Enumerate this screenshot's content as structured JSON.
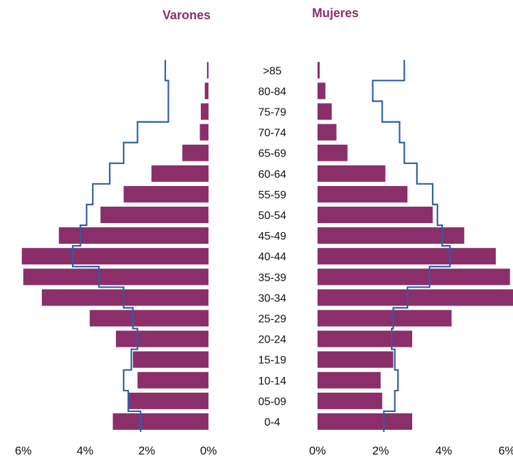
{
  "chart_data": {
    "type": "bar",
    "subtype": "population-pyramid",
    "left_title": "Varones",
    "right_title": "Mujeres",
    "categories": [
      "0-4",
      "05-09",
      "10-14",
      "15-19",
      "20-24",
      "25-29",
      "30-34",
      "35-39",
      "40-44",
      "45-49",
      "50-54",
      "55-59",
      "60-64",
      "65-69",
      "70-74",
      "75-79",
      "80-84",
      ">85"
    ],
    "series": [
      {
        "side": "left",
        "kind": "bars",
        "values": [
          3.1,
          2.6,
          2.3,
          2.45,
          3.0,
          3.85,
          5.4,
          6.0,
          6.05,
          4.85,
          3.5,
          2.75,
          1.85,
          0.85,
          0.28,
          0.25,
          0.12,
          0.05
        ]
      },
      {
        "side": "right",
        "kind": "bars",
        "values": [
          3.0,
          2.05,
          2.0,
          2.4,
          3.0,
          4.25,
          6.3,
          6.1,
          5.65,
          4.65,
          3.65,
          2.85,
          2.15,
          0.95,
          0.6,
          0.45,
          0.25,
          0.07
        ]
      },
      {
        "side": "left",
        "kind": "step-line",
        "color": "#2b5fa3",
        "values": [
          2.2,
          2.6,
          2.75,
          2.5,
          2.3,
          2.45,
          2.75,
          3.55,
          4.4,
          4.15,
          3.95,
          3.75,
          3.2,
          2.75,
          2.3,
          1.3,
          1.3,
          1.4
        ]
      },
      {
        "side": "right",
        "kind": "step-line",
        "color": "#2b5fa3",
        "values": [
          2.1,
          2.45,
          2.55,
          2.45,
          2.35,
          2.4,
          2.85,
          3.55,
          4.2,
          3.95,
          3.8,
          3.65,
          3.15,
          2.75,
          2.6,
          2.05,
          1.75,
          2.75
        ]
      }
    ],
    "left_axis": {
      "ticks": [
        "6%",
        "4%",
        "2%",
        "0%"
      ],
      "tick_values": [
        6,
        4,
        2,
        0
      ],
      "range": [
        0,
        6.1
      ]
    },
    "right_axis": {
      "ticks": [
        "0%",
        "2%",
        "4%",
        "6%"
      ],
      "tick_values": [
        0,
        2,
        4,
        6
      ],
      "range": [
        0,
        6.1
      ]
    },
    "bar_color": "#8b2f6b",
    "line_color": "#2b5fa3",
    "grid": false,
    "legend": "none"
  }
}
